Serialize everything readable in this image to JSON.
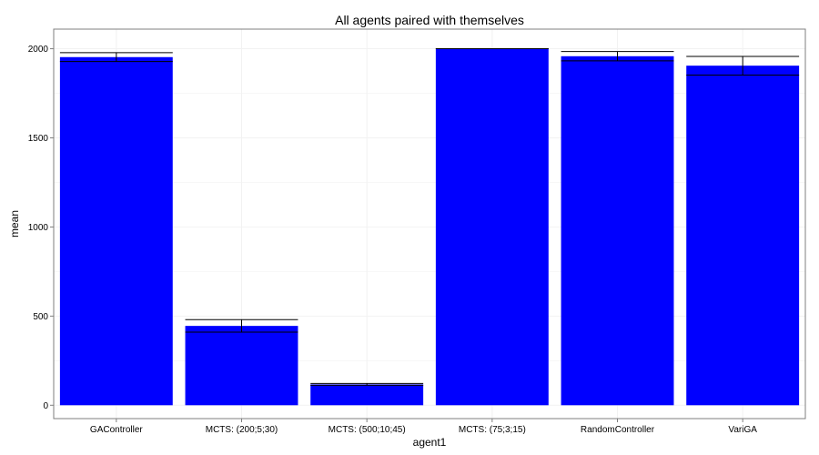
{
  "chart_data": {
    "type": "bar",
    "title": "All agents paired with themselves",
    "xlabel": "agent1",
    "ylabel": "mean",
    "categories": [
      "GAController",
      "MCTS: (200;5;30)",
      "MCTS: (500;10;45)",
      "MCTS: (75;3;15)",
      "RandomController",
      "VariGA"
    ],
    "values": [
      1953,
      445,
      117,
      2000,
      1958,
      1905
    ],
    "error_bars": [
      {
        "low": 1928,
        "high": 1978
      },
      {
        "low": 410,
        "high": 480
      },
      {
        "low": 112,
        "high": 122
      },
      {
        "low": 2000,
        "high": 2000
      },
      {
        "low": 1932,
        "high": 1984
      },
      {
        "low": 1852,
        "high": 1957
      }
    ],
    "yticks": [
      0,
      500,
      1000,
      1500,
      2000
    ],
    "ylim": [
      -75,
      2110
    ],
    "grid": true,
    "colors": {
      "bar": "#0000ff",
      "error": "#000000",
      "grid": "#f2f2f2",
      "frame": "#7f7f7f"
    }
  }
}
